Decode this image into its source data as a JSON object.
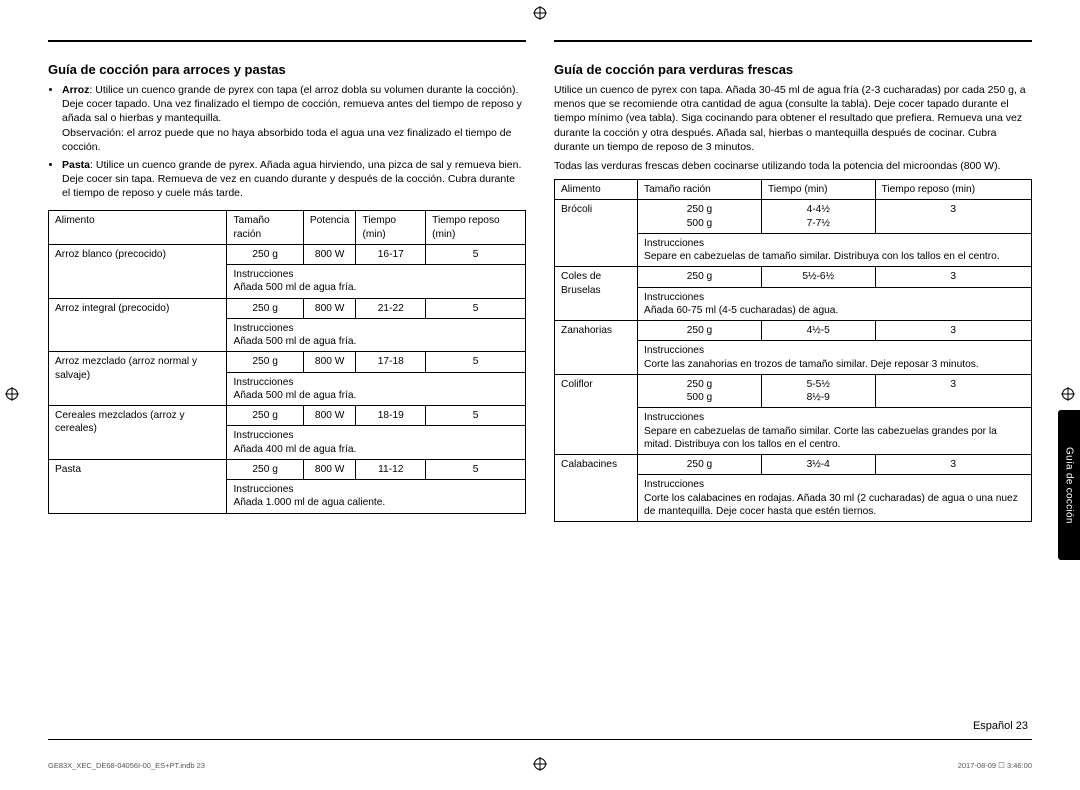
{
  "crop_marks": {
    "symbol": "⊕"
  },
  "left": {
    "heading": "Guía de cocción para arroces y pastas",
    "bullets": [
      {
        "label": "Arroz",
        "text": ": Utilice un cuenco grande de pyrex con tapa (el arroz dobla su volumen durante la cocción). Deje cocer tapado. Una vez finalizado el tiempo de cocción, remueva antes del tiempo de reposo y añada sal o hierbas y mantequilla.",
        "note": "Observación: el arroz puede que no haya absorbido toda el agua una vez finalizado el tiempo de cocción."
      },
      {
        "label": "Pasta",
        "text": ": Utilice un cuenco grande de pyrex. Añada agua hirviendo, una pizca de sal y remueva bien. Deje cocer sin tapa. Remueva de vez en cuando durante y después de la cocción. Cubra durante el tiempo de reposo y cuele más tarde."
      }
    ],
    "table": {
      "headers": [
        "Alimento",
        "Tamaño ración",
        "Potencia",
        "Tiempo (min)",
        "Tiempo reposo (min)"
      ],
      "rows": [
        {
          "food": "Arroz blanco (precocido)",
          "size": "250 g",
          "power": "800 W",
          "time": "16-17",
          "rest": "5",
          "instr_label": "Instrucciones",
          "instr": "Añada 500 ml de agua fría."
        },
        {
          "food": "Arroz integral (precocido)",
          "size": "250 g",
          "power": "800 W",
          "time": "21-22",
          "rest": "5",
          "instr_label": "Instrucciones",
          "instr": "Añada 500 ml de agua fría."
        },
        {
          "food": "Arroz mezclado (arroz normal y salvaje)",
          "size": "250 g",
          "power": "800 W",
          "time": "17-18",
          "rest": "5",
          "instr_label": "Instrucciones",
          "instr": "Añada 500 ml de agua fría."
        },
        {
          "food": "Cereales mezclados (arroz y cereales)",
          "size": "250 g",
          "power": "800 W",
          "time": "18-19",
          "rest": "5",
          "instr_label": "Instrucciones",
          "instr": "Añada 400 ml de agua fría."
        },
        {
          "food": "Pasta",
          "size": "250 g",
          "power": "800 W",
          "time": "11-12",
          "rest": "5",
          "instr_label": "Instrucciones",
          "instr": "Añada 1.000 ml de agua caliente."
        }
      ]
    }
  },
  "right": {
    "heading": "Guía de cocción para verduras frescas",
    "paras": [
      "Utilice un cuenco de pyrex con tapa. Añada 30-45 ml de agua fría (2-3 cucharadas) por cada 250 g, a menos que se recomiende otra cantidad de agua (consulte la tabla). Deje cocer tapado durante el tiempo mínimo (vea tabla). Siga cocinando para obtener el resultado que prefiera. Remueva una vez durante la cocción y otra después. Añada sal, hierbas o mantequilla después de cocinar. Cubra durante un tiempo de reposo de 3 minutos.",
      "Todas las verduras frescas deben cocinarse utilizando toda la potencia del microondas (800 W)."
    ],
    "table": {
      "headers": [
        "Alimento",
        "Tamaño ración",
        "Tiempo (min)",
        "Tiempo reposo (min)"
      ],
      "rows": [
        {
          "food": "Brócoli",
          "sizes": [
            "250 g",
            "500 g"
          ],
          "times": [
            "4-4½",
            "7-7½"
          ],
          "rest": "3",
          "instr_label": "Instrucciones",
          "instr": "Separe en cabezuelas de tamaño similar. Distribuya con los tallos en el centro."
        },
        {
          "food": "Coles de Bruselas",
          "sizes": [
            "250 g"
          ],
          "times": [
            "5½-6½"
          ],
          "rest": "3",
          "instr_label": "Instrucciones",
          "instr": "Añada 60-75 ml (4-5 cucharadas) de agua."
        },
        {
          "food": "Zanahorias",
          "sizes": [
            "250 g"
          ],
          "times": [
            "4½-5"
          ],
          "rest": "3",
          "instr_label": "Instrucciones",
          "instr": "Corte las zanahorias en trozos de tamaño similar. Deje reposar 3 minutos."
        },
        {
          "food": "Coliflor",
          "sizes": [
            "250 g",
            "500 g"
          ],
          "times": [
            "5-5½",
            "8½-9"
          ],
          "rest": "3",
          "instr_label": "Instrucciones",
          "instr": "Separe en cabezuelas de tamaño similar. Corte las cabezuelas grandes por la mitad. Distribuya con los tallos en el centro."
        },
        {
          "food": "Calabacines",
          "sizes": [
            "250 g"
          ],
          "times": [
            "3½-4"
          ],
          "rest": "3",
          "instr_label": "Instrucciones",
          "instr": "Corte los calabacines en rodajas. Añada 30 ml (2 cucharadas) de agua o una nuez de mantequilla. Deje cocer hasta que estén tiernos."
        }
      ]
    }
  },
  "side_tab": "Guía de cocción",
  "page_label": "Español  23",
  "meta_left": "GE83X_XEC_DE68-04056I-00_ES+PT.indb  23",
  "meta_right": "2017-08-09  ☐ 3:46:00"
}
